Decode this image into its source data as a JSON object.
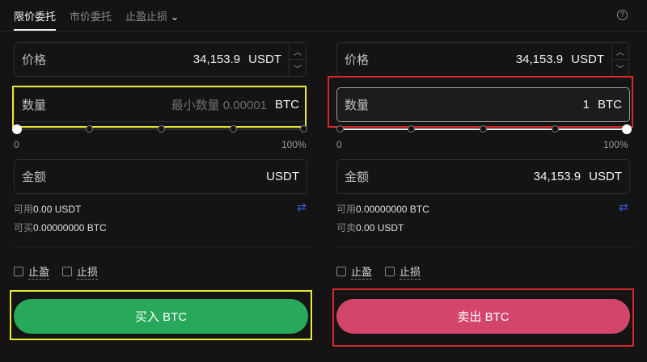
{
  "tabs": [
    {
      "label": "限价委托",
      "active": true
    },
    {
      "label": "市价委托"
    },
    {
      "label": "止盈止损"
    }
  ],
  "help_icon": "?",
  "buy": {
    "price_label": "价格",
    "price": "34,153.9",
    "price_unit": "USDT",
    "qty_label": "数量",
    "qty_placeholder": "最小数量 0.00001",
    "qty_unit": "BTC",
    "slider_min": "0",
    "slider_max": "100%",
    "slider_value_percent": 0,
    "amount_label": "金额",
    "amount_unit": "USDT",
    "avail_label": "可用",
    "avail_value": "0.00 USDT",
    "max_label": "可买",
    "max_value": "0.00000000 BTC",
    "tp_label": "止盈",
    "sl_label": "止损",
    "button": "买入 BTC",
    "color": "#27a85a"
  },
  "sell": {
    "price_label": "价格",
    "price": "34,153.9",
    "price_unit": "USDT",
    "qty_label": "数量",
    "qty_value": "1",
    "qty_unit": "BTC",
    "slider_min": "0",
    "slider_max": "100%",
    "slider_value_percent": 100,
    "amount_label": "金额",
    "amount_value": "34,153.9",
    "amount_unit": "USDT",
    "avail_label": "可用",
    "avail_value": "0.00000000 BTC",
    "max_label": "可卖",
    "max_value": "0.00 USDT",
    "tp_label": "止盈",
    "sl_label": "止损",
    "button": "卖出 BTC",
    "color": "#d4456c"
  },
  "highlight_colors": {
    "yellow": "#e8e83a",
    "red": "#d8282a"
  }
}
